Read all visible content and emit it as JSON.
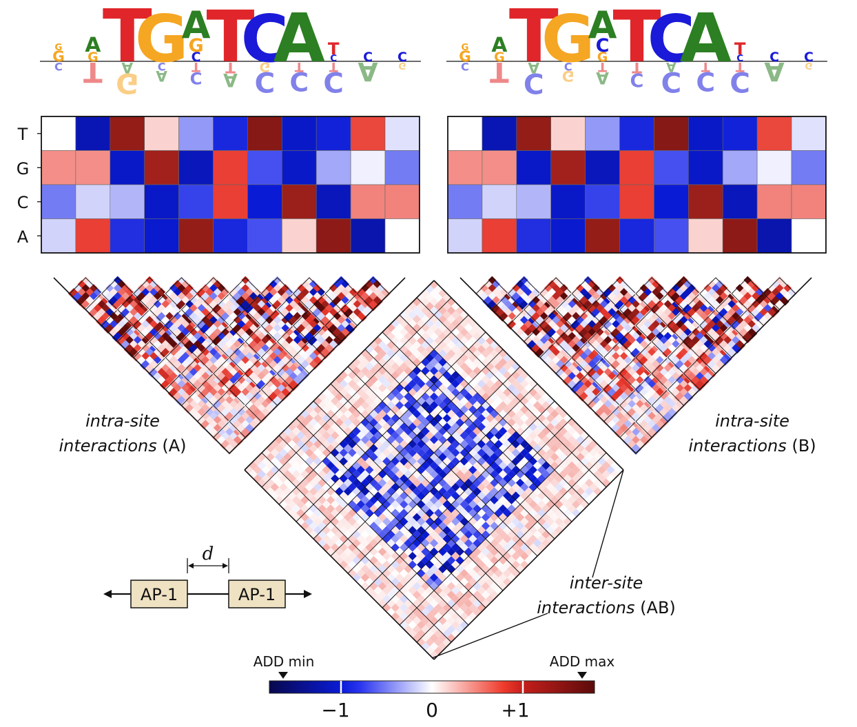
{
  "logo_a": {
    "top": [
      [
        "G",
        "G"
      ],
      [
        "G",
        "A"
      ],
      [
        "T"
      ],
      [
        "G"
      ],
      [
        "C",
        "G",
        "A"
      ],
      [
        "T"
      ],
      [
        "C"
      ],
      [
        "A"
      ],
      [
        "C",
        "T"
      ],
      [
        "C"
      ],
      [
        "C"
      ]
    ],
    "bottom": [
      [
        "C"
      ],
      [
        "T"
      ],
      [
        "A",
        "G"
      ],
      [
        "C",
        "A"
      ],
      [
        "T",
        "C"
      ],
      [
        "T",
        "A"
      ],
      [
        "G",
        "C"
      ],
      [
        "T",
        "C"
      ],
      [
        "T",
        "C"
      ],
      [
        "A"
      ],
      [
        "G"
      ]
    ]
  },
  "logo_b": {
    "top": [
      [
        "G",
        "G"
      ],
      [
        "G",
        "A"
      ],
      [
        "T"
      ],
      [
        "G"
      ],
      [
        "G",
        "C",
        "A"
      ],
      [
        "T"
      ],
      [
        "C"
      ],
      [
        "A"
      ],
      [
        "C",
        "T"
      ],
      [
        "C"
      ],
      [
        "C"
      ]
    ],
    "bottom": [
      [
        "C"
      ],
      [
        "T"
      ],
      [
        "A",
        "C"
      ],
      [
        "C",
        "G"
      ],
      [
        "T",
        "A"
      ],
      [
        "T",
        "C"
      ],
      [
        "A",
        "C"
      ],
      [
        "T",
        "C"
      ],
      [
        "T",
        "C"
      ],
      [
        "A"
      ],
      [
        "G"
      ]
    ]
  },
  "heatmap": {
    "row_labels": [
      "T",
      "G",
      "C",
      "A"
    ],
    "values": [
      [
        0.0,
        -1.25,
        1.6,
        0.2,
        -0.35,
        -0.9,
        1.7,
        -1.1,
        -0.95,
        0.9,
        -0.1
      ],
      [
        0.5,
        0.5,
        -1.1,
        1.5,
        -1.2,
        0.95,
        -0.6,
        -1.1,
        -0.3,
        -0.05,
        -0.45
      ],
      [
        -0.45,
        -0.15,
        -0.25,
        -1.1,
        -0.7,
        0.95,
        -1.0,
        1.55,
        -1.2,
        0.55,
        0.55
      ],
      [
        -0.15,
        0.95,
        -0.85,
        -1.05,
        1.6,
        -0.9,
        -0.6,
        0.2,
        1.65,
        -1.3,
        0.0
      ]
    ]
  },
  "captions": {
    "intra_a_italic_1": "intra-site",
    "intra_a_italic_2": "interactions",
    "intra_a_suffix": "(A)",
    "intra_b_italic_1": "intra-site",
    "intra_b_italic_2": "interactions",
    "intra_b_suffix": "(B)",
    "inter_italic_1": "inter-site",
    "inter_italic_2": "interactions",
    "inter_suffix": "(AB)"
  },
  "construct": {
    "box_label": "AP-1",
    "spacing_label": "d"
  },
  "colorbar": {
    "min_marker": "ADD min",
    "max_marker": "ADD max",
    "tick_neg": "−1",
    "tick_zero": "0",
    "tick_pos": "+1",
    "colors": [
      "#08084d",
      "#0a1bd6",
      "#3d45f0",
      "#ffffff",
      "#ef3b2c",
      "#d0201e",
      "#5c0b0b"
    ]
  },
  "colors": {
    "A": "#2c7f22",
    "C": "#1a1ad8",
    "G": "#f5a623",
    "T": "#e0262a",
    "box_fill": "#efe2c3"
  }
}
